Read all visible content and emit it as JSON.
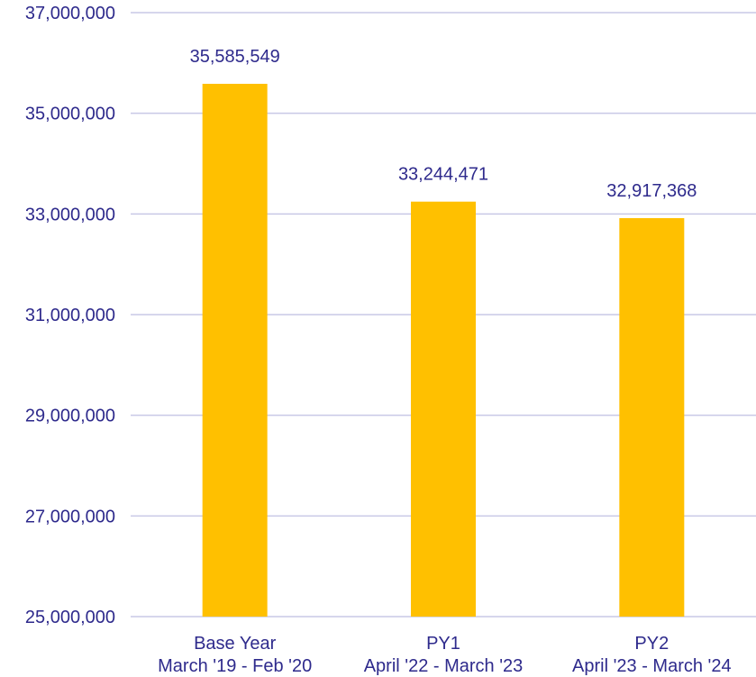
{
  "chart_data": {
    "type": "bar",
    "categories": [
      {
        "line1": "Base Year",
        "line2": "March '19 - Feb '20"
      },
      {
        "line1": "PY1",
        "line2": "April '22 - March '23"
      },
      {
        "line1": "PY2",
        "line2": "April '23 - March '24"
      }
    ],
    "values": [
      35585549,
      33244471,
      32917368
    ],
    "data_labels": [
      "35,585,549",
      "33,244,471",
      "32,917,368"
    ],
    "ylim": [
      25000000,
      37000000
    ],
    "yticks": [
      25000000,
      27000000,
      29000000,
      31000000,
      33000000,
      35000000,
      37000000
    ],
    "ytick_labels": [
      "25,000,000",
      "27,000,000",
      "29,000,000",
      "31,000,000",
      "33,000,000",
      "35,000,000",
      "37,000,000"
    ],
    "grid": true,
    "colors": {
      "bar": "#ffc000",
      "text": "#2e2a8c",
      "grid": "#c9c9e6"
    },
    "title": "",
    "xlabel": "",
    "ylabel": ""
  }
}
